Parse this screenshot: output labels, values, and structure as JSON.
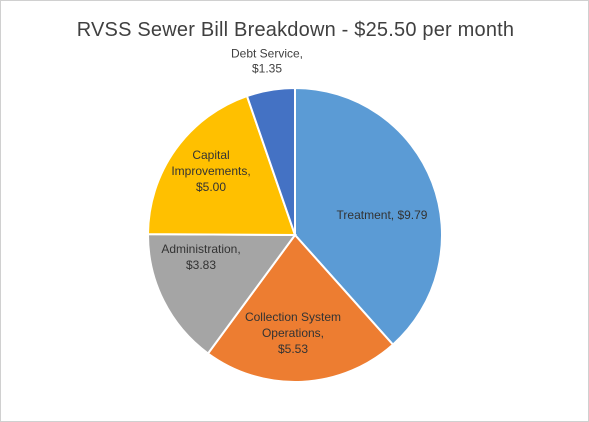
{
  "chart_data": {
    "type": "pie",
    "title": "RVSS Sewer Bill Breakdown - $25.50 per month",
    "slices": [
      {
        "name": "Treatment",
        "value": 9.79,
        "color": "#5b9bd5",
        "label_lines": [
          "Treatment,  $9.79"
        ],
        "label_color": "#333333"
      },
      {
        "name": "Collection System Operations",
        "value": 5.53,
        "color": "#ed7d31",
        "label_lines": [
          "Collection System",
          "Operations,",
          "$5.53"
        ],
        "label_color": "#333333"
      },
      {
        "name": "Administration",
        "value": 3.83,
        "color": "#a5a5a5",
        "label_lines": [
          "Administration,",
          "$3.83"
        ],
        "label_color": "#333333"
      },
      {
        "name": "Capital Improvements",
        "value": 5.0,
        "color": "#ffc000",
        "label_lines": [
          "Capital",
          "Improvements,",
          "$5.00"
        ],
        "label_color": "#333333"
      },
      {
        "name": "Debt Service",
        "value": 1.35,
        "color": "#4472c4",
        "label_lines": [
          "Debt Service,",
          "$1.35"
        ],
        "label_color": "#404040"
      }
    ],
    "start_angle_deg": 0,
    "direction": "clockwise",
    "legend": "none"
  }
}
